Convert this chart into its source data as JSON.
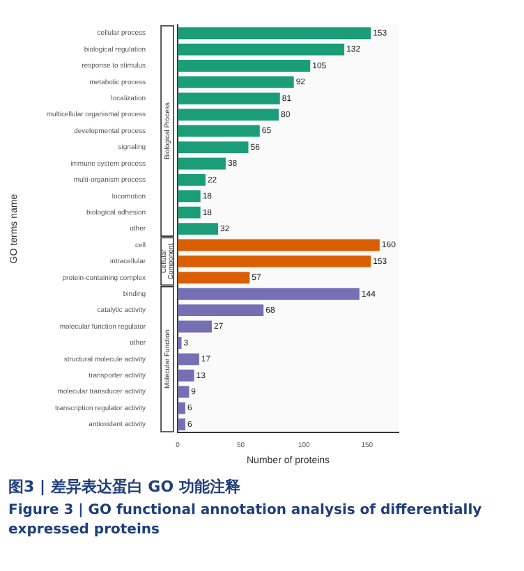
{
  "chart_data": {
    "type": "bar",
    "orientation": "horizontal",
    "title": "图3 | 差异表达蛋白 GO 功能注释",
    "subtitle": "Figure 3 | GO functional annotation analysis of differentially expressed proteins",
    "xlabel": "Number of proteins",
    "ylabel": "GO terms name",
    "categories": [
      "cellular process",
      "biological regulation",
      "response to stimulus",
      "metabolic process",
      "localization",
      "multicellular organismal process",
      "developmental process",
      "signaling",
      "immune system process",
      "multi-organism process",
      "locomotion",
      "biological adhesion",
      "other",
      "cell",
      "intracellular",
      "protein-containing complex",
      "binding",
      "catalytic activity",
      "molecular function regulator",
      "other",
      "structural molecule activity",
      "transporter activity",
      "molecular transducer activity",
      "transcription regulator activity",
      "antioxidant activity"
    ],
    "series": [
      {
        "name": "Biological Process",
        "color": "#1b9e77",
        "values": [
          153,
          132,
          105,
          92,
          81,
          80,
          65,
          56,
          38,
          22,
          18,
          18,
          32,
          null,
          null,
          null,
          null,
          null,
          null,
          null,
          null,
          null,
          null,
          null,
          null
        ]
      },
      {
        "name": "Cellular Component",
        "color": "#d95f02",
        "values": [
          null,
          null,
          null,
          null,
          null,
          null,
          null,
          null,
          null,
          null,
          null,
          null,
          null,
          160,
          153,
          57,
          null,
          null,
          null,
          null,
          null,
          null,
          null,
          null,
          null
        ]
      },
      {
        "name": "Molecular Function",
        "color": "#7570b3",
        "values": [
          null,
          null,
          null,
          null,
          null,
          null,
          null,
          null,
          null,
          null,
          null,
          null,
          null,
          null,
          null,
          null,
          144,
          68,
          27,
          3,
          17,
          13,
          9,
          6,
          6
        ]
      }
    ],
    "xlim": [
      0,
      175
    ],
    "xticks": [
      0,
      50,
      100,
      150
    ],
    "data_labels": true,
    "grid": false,
    "legend": false
  }
}
